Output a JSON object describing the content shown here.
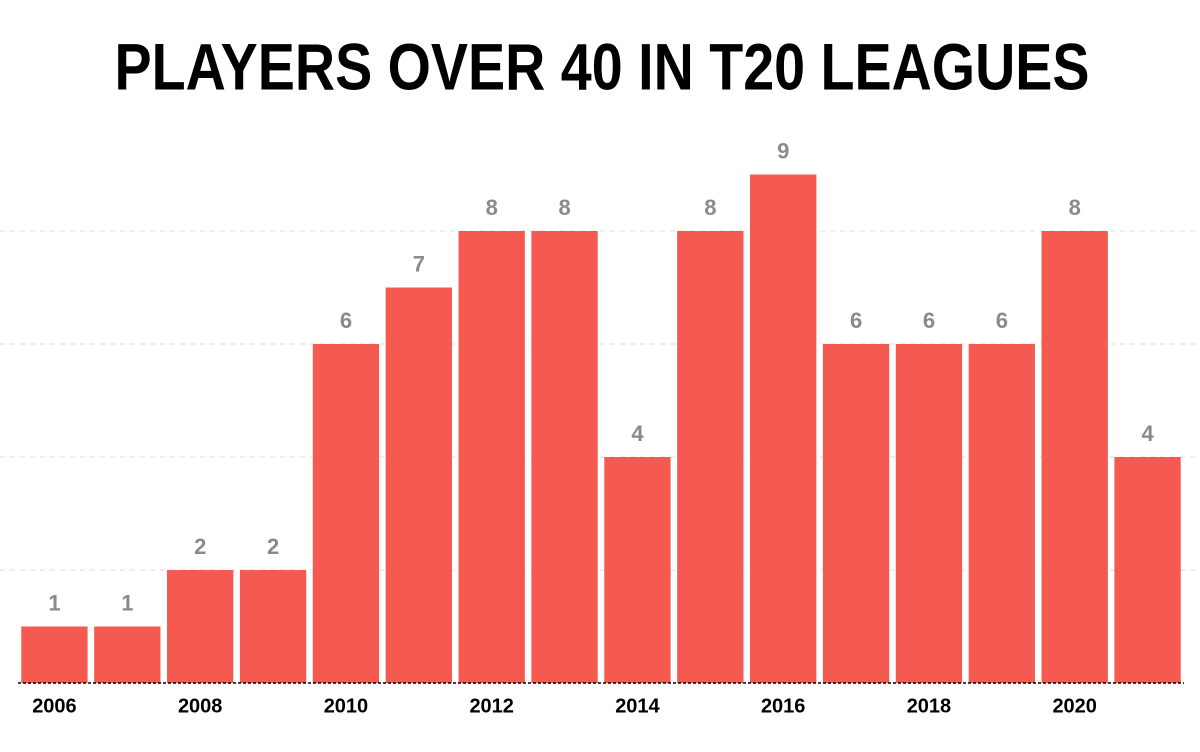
{
  "chart_data": {
    "type": "bar",
    "title": "PLAYERS OVER 40 IN T20 LEAGUES",
    "categories": [
      "2006",
      null,
      "2008",
      null,
      "2010",
      null,
      "2012",
      null,
      "2014",
      null,
      "2016",
      null,
      "2018",
      null,
      "2020",
      null
    ],
    "values": [
      1,
      1,
      2,
      2,
      6,
      7,
      8,
      8,
      4,
      8,
      9,
      6,
      6,
      6,
      8,
      4
    ],
    "color": "#f45a50",
    "ylim": [
      0,
      10
    ],
    "gridlines": [
      2,
      4,
      6,
      8
    ],
    "grid": true
  }
}
